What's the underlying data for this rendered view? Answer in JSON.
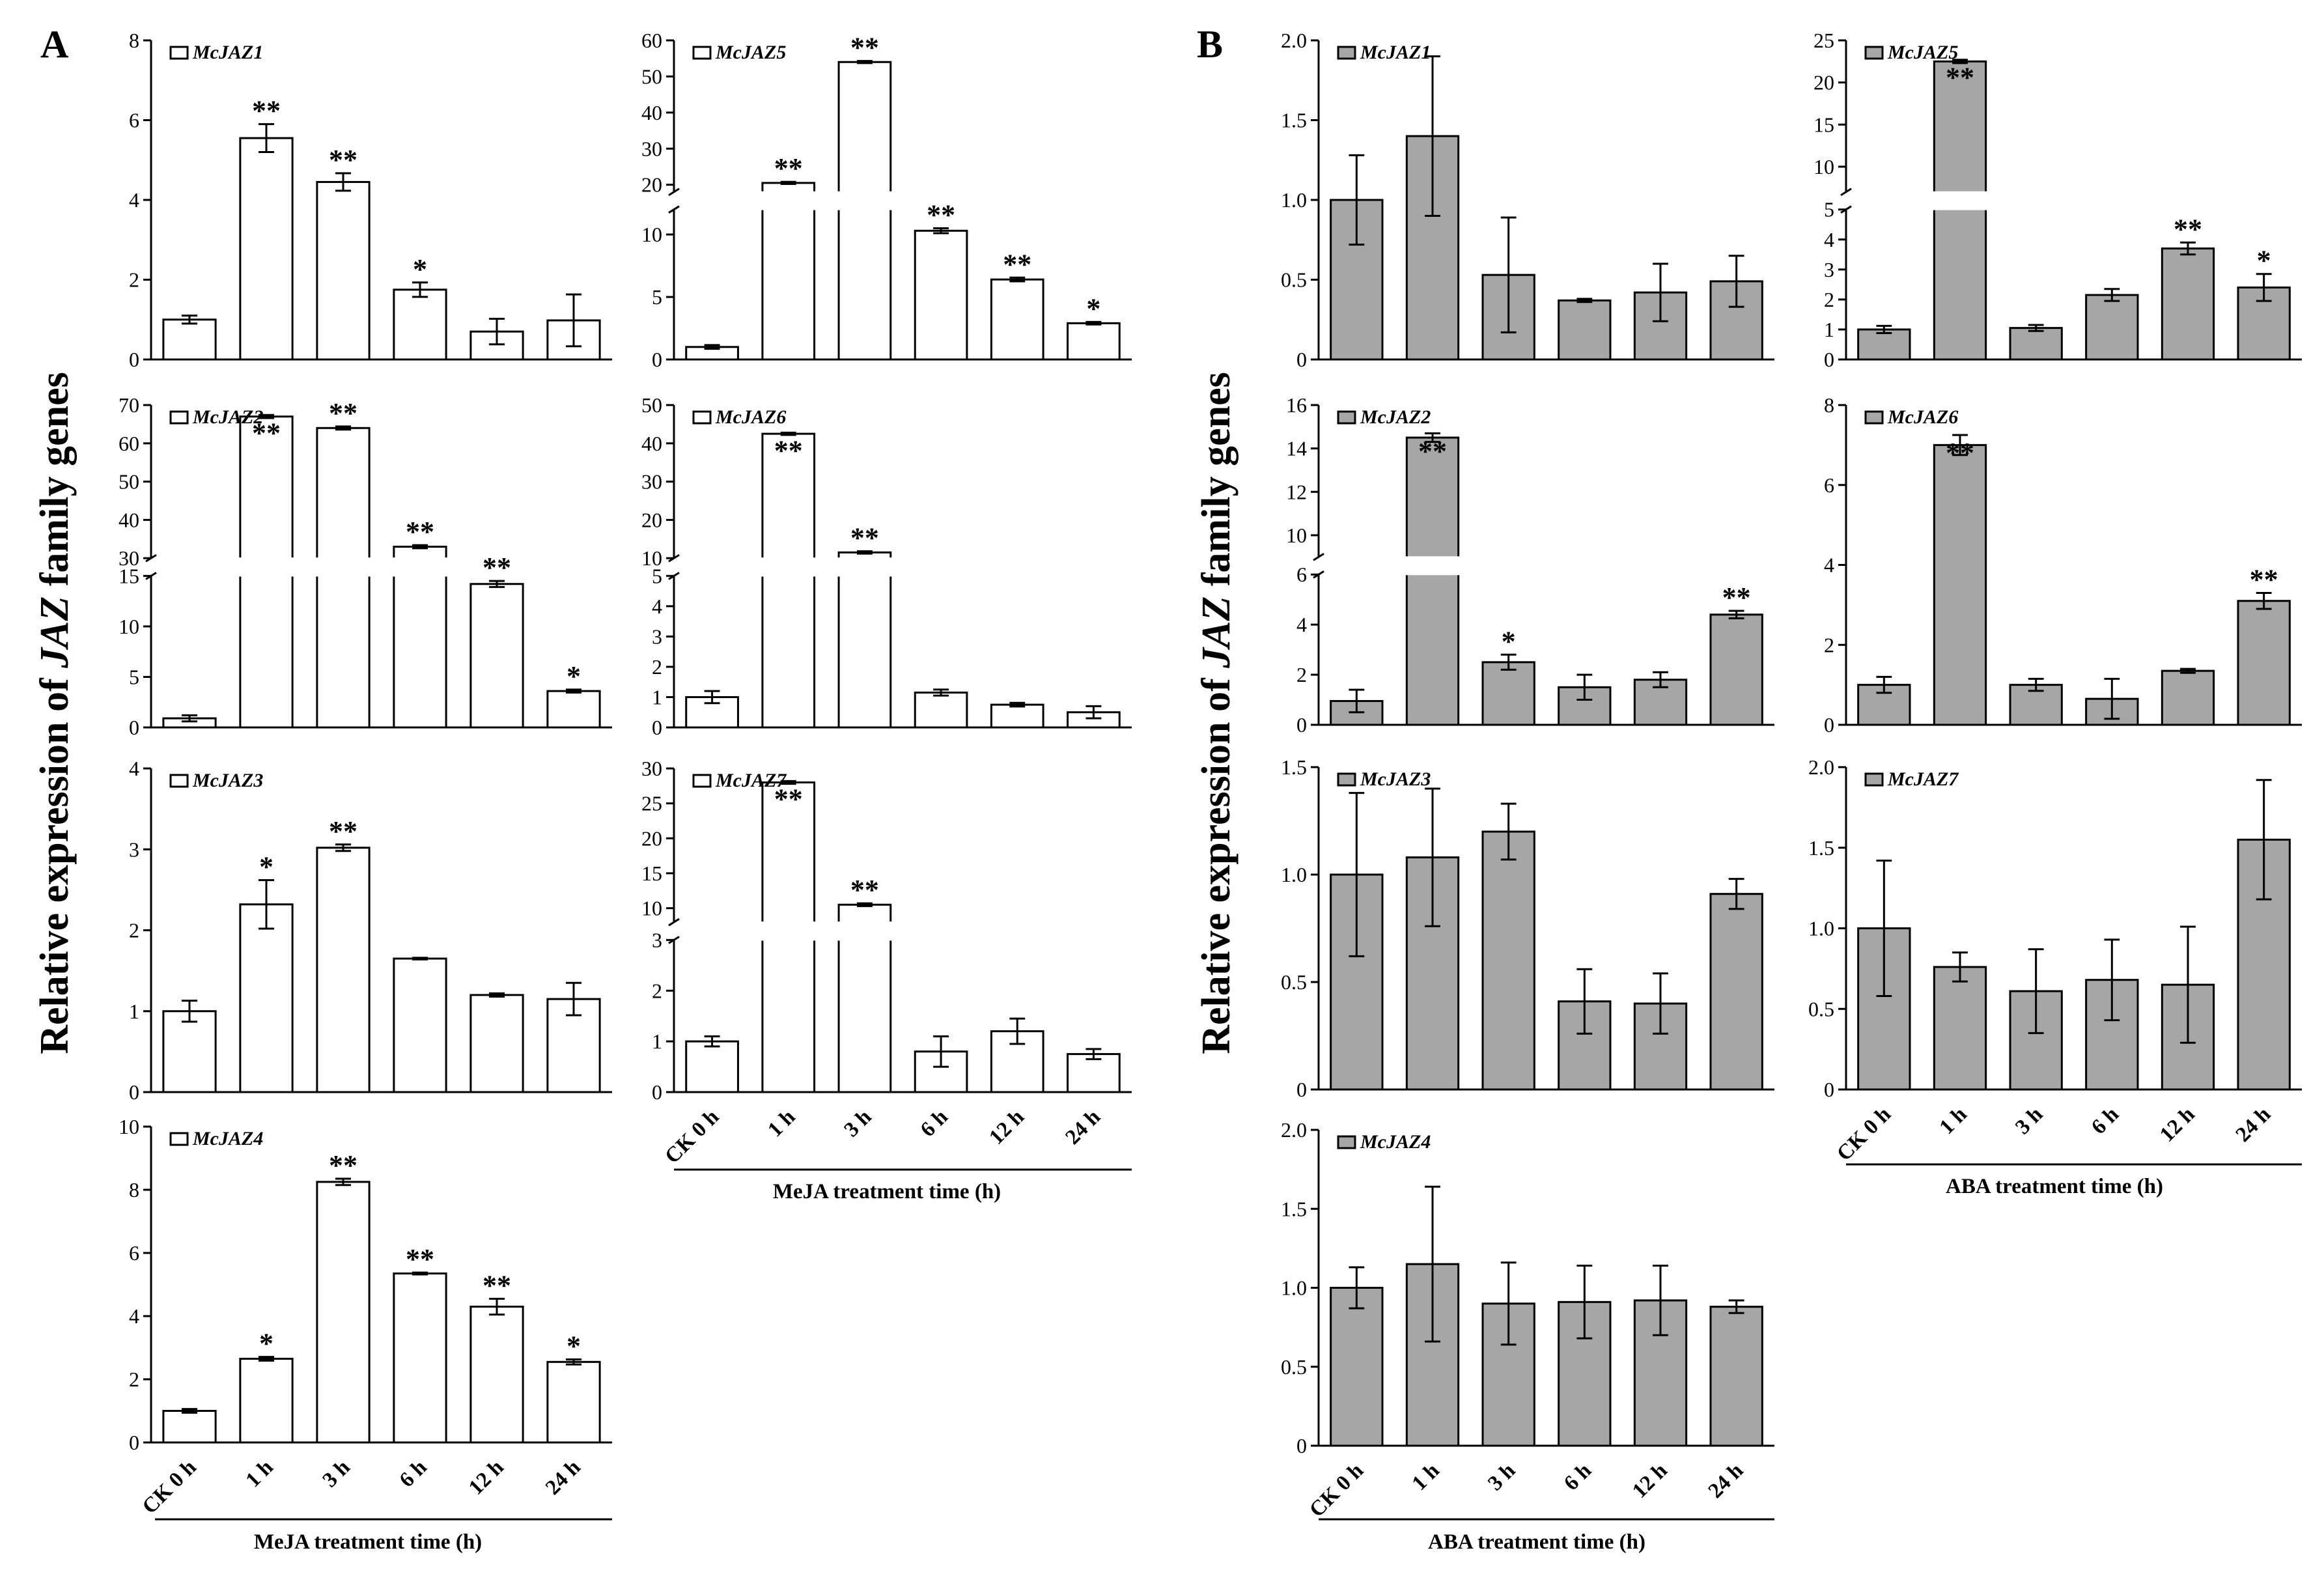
{
  "panels": {
    "A": "A",
    "B": "B"
  },
  "ylabel": {
    "prefix": "Relative expression of ",
    "italic": "JAZ",
    "suffix": " family genes"
  },
  "xlabels": {
    "A": "MeJA treatment time (h)",
    "B": "ABA treatment time (h)"
  },
  "categories": [
    "CK  0 h",
    "1 h",
    "3 h",
    "6 h",
    "12 h",
    "24 h"
  ],
  "colors": {
    "A_bar": "#ffffff",
    "B_bar": "#a6a6a6",
    "ink": "#000000"
  },
  "chart_data": [
    {
      "type": "bar",
      "panel": "A",
      "legend": "McJAZ1",
      "values": [
        1.0,
        5.55,
        4.45,
        1.75,
        0.7,
        0.98
      ],
      "errors": [
        0.1,
        0.35,
        0.22,
        0.18,
        0.32,
        0.65
      ],
      "sig": [
        "",
        "**",
        "**",
        "*",
        "",
        ""
      ],
      "ylim": [
        0,
        8
      ],
      "ticks": [
        0,
        2,
        4,
        6,
        8
      ]
    },
    {
      "type": "bar",
      "panel": "A",
      "legend": "McJAZ5",
      "values": [
        1.0,
        20.5,
        54,
        10.3,
        6.4,
        2.9
      ],
      "errors": [
        0.15,
        0.3,
        0.3,
        0.2,
        0.15,
        0.1
      ],
      "sig": [
        "",
        "**",
        "**",
        "**",
        "**",
        "*"
      ],
      "break": {
        "low": [
          0,
          12
        ],
        "high": [
          18,
          60
        ]
      },
      "ticks_low": [
        0,
        5,
        10
      ],
      "ticks_high": [
        20,
        30,
        40,
        50,
        60
      ]
    },
    {
      "type": "bar",
      "panel": "A",
      "legend": "McJAZ2",
      "values": [
        0.9,
        67,
        64,
        33,
        14.2,
        3.6
      ],
      "errors": [
        0.3,
        0.4,
        0.4,
        0.4,
        0.3,
        0.15
      ],
      "sig": [
        "",
        "**",
        "**",
        "**",
        "**",
        "*"
      ],
      "sig_inside": [
        false,
        true,
        false,
        false,
        false,
        false
      ],
      "break": {
        "low": [
          0,
          15
        ],
        "high": [
          30,
          70
        ]
      },
      "ticks_low": [
        0,
        5,
        10,
        15
      ],
      "ticks_high": [
        30,
        40,
        50,
        60,
        70
      ]
    },
    {
      "type": "bar",
      "panel": "A",
      "legend": "McJAZ6",
      "values": [
        1.0,
        42.5,
        11.5,
        1.15,
        0.75,
        0.5
      ],
      "errors": [
        0.2,
        0.3,
        0.3,
        0.1,
        0.06,
        0.2
      ],
      "sig": [
        "",
        "**",
        "**",
        "",
        "",
        ""
      ],
      "sig_inside": [
        false,
        true,
        false,
        false,
        false,
        false
      ],
      "break": {
        "low": [
          0,
          5
        ],
        "high": [
          10,
          50
        ]
      },
      "ticks_low": [
        0,
        1,
        2,
        3,
        4,
        5
      ],
      "ticks_high": [
        10,
        20,
        30,
        40,
        50
      ]
    },
    {
      "type": "bar",
      "panel": "A",
      "legend": "McJAZ3",
      "values": [
        1.0,
        2.32,
        3.02,
        1.65,
        1.2,
        1.15
      ],
      "errors": [
        0.13,
        0.3,
        0.04,
        0.01,
        0.02,
        0.2
      ],
      "sig": [
        "",
        "*",
        "**",
        "",
        "",
        ""
      ],
      "ylim": [
        0,
        4
      ],
      "ticks": [
        0,
        1,
        2,
        3,
        4
      ]
    },
    {
      "type": "bar",
      "panel": "A",
      "legend": "McJAZ7",
      "values": [
        1.0,
        28,
        10.5,
        0.8,
        1.2,
        0.75
      ],
      "errors": [
        0.1,
        0.2,
        0.2,
        0.3,
        0.25,
        0.1
      ],
      "sig": [
        "",
        "**",
        "**",
        "",
        "",
        ""
      ],
      "sig_inside": [
        false,
        true,
        false,
        false,
        false,
        false
      ],
      "break": {
        "low": [
          0,
          3
        ],
        "high": [
          8,
          30
        ]
      },
      "ticks_low": [
        0,
        1,
        2,
        3
      ],
      "ticks_high": [
        10,
        15,
        20,
        25,
        30
      ]
    },
    {
      "type": "bar",
      "panel": "A",
      "legend": "McJAZ4",
      "values": [
        1.0,
        2.65,
        8.25,
        5.35,
        4.3,
        2.55
      ],
      "errors": [
        0.06,
        0.06,
        0.1,
        0.03,
        0.25,
        0.08
      ],
      "sig": [
        "",
        "*",
        "**",
        "**",
        "**",
        "*"
      ],
      "ylim": [
        0,
        10
      ],
      "ticks": [
        0,
        2,
        4,
        6,
        8,
        10
      ]
    },
    {
      "type": "bar",
      "panel": "B",
      "legend": "McJAZ1",
      "values": [
        1.0,
        1.4,
        0.53,
        0.37,
        0.42,
        0.49
      ],
      "errors": [
        0.28,
        0.5,
        0.36,
        0.01,
        0.18,
        0.16
      ],
      "sig": [
        "",
        "",
        "",
        "",
        "",
        ""
      ],
      "ylim": [
        0,
        2.0
      ],
      "ticks": [
        0,
        0.5,
        1.0,
        1.5,
        2.0
      ],
      "tick_labels": [
        "0",
        "0.5",
        "1.0",
        "1.5",
        "2.0"
      ]
    },
    {
      "type": "bar",
      "panel": "B",
      "legend": "McJAZ5",
      "values": [
        1.0,
        22.5,
        1.05,
        2.15,
        3.7,
        2.4
      ],
      "errors": [
        0.12,
        0.2,
        0.1,
        0.2,
        0.2,
        0.45
      ],
      "sig": [
        "",
        "**",
        "",
        "",
        "**",
        "*"
      ],
      "sig_inside": [
        false,
        true,
        false,
        false,
        false,
        false
      ],
      "break": {
        "low": [
          0,
          5
        ],
        "high": [
          7,
          25
        ]
      },
      "ticks_low": [
        0,
        1,
        2,
        3,
        4,
        5
      ],
      "ticks_high": [
        10,
        15,
        20,
        25
      ]
    },
    {
      "type": "bar",
      "panel": "B",
      "legend": "McJAZ2",
      "values": [
        0.95,
        14.5,
        2.5,
        1.5,
        1.8,
        4.4
      ],
      "errors": [
        0.45,
        0.2,
        0.3,
        0.5,
        0.3,
        0.15
      ],
      "sig": [
        "",
        "**",
        "*",
        "",
        "",
        "**"
      ],
      "sig_inside": [
        false,
        true,
        false,
        false,
        false,
        false
      ],
      "break": {
        "low": [
          0,
          6
        ],
        "high": [
          9,
          16
        ]
      },
      "ticks_low": [
        0,
        2,
        4,
        6
      ],
      "ticks_high": [
        10,
        12,
        14,
        16
      ]
    },
    {
      "type": "bar",
      "panel": "B",
      "legend": "McJAZ6",
      "values": [
        1.0,
        7.0,
        1.0,
        0.65,
        1.35,
        3.1
      ],
      "errors": [
        0.2,
        0.25,
        0.15,
        0.5,
        0.05,
        0.2
      ],
      "sig": [
        "",
        "**",
        "",
        "",
        "",
        "**"
      ],
      "sig_inside": [
        false,
        true,
        false,
        false,
        false,
        false
      ],
      "ylim": [
        0,
        8
      ],
      "ticks": [
        0,
        2,
        4,
        6,
        8
      ]
    },
    {
      "type": "bar",
      "panel": "B",
      "legend": "McJAZ3",
      "values": [
        1.0,
        1.08,
        1.2,
        0.41,
        0.4,
        0.91
      ],
      "errors": [
        0.38,
        0.32,
        0.13,
        0.15,
        0.14,
        0.07
      ],
      "sig": [
        "",
        "",
        "",
        "",
        "",
        ""
      ],
      "ylim": [
        0,
        1.5
      ],
      "ticks": [
        0,
        0.5,
        1.0,
        1.5
      ],
      "tick_labels": [
        "0",
        "0.5",
        "1.0",
        "1.5"
      ]
    },
    {
      "type": "bar",
      "panel": "B",
      "legend": "McJAZ7",
      "values": [
        1.0,
        0.76,
        0.61,
        0.68,
        0.65,
        1.55
      ],
      "errors": [
        0.42,
        0.09,
        0.26,
        0.25,
        0.36,
        0.37
      ],
      "sig": [
        "",
        "",
        "",
        "",
        "",
        ""
      ],
      "ylim": [
        0,
        2.0
      ],
      "ticks": [
        0,
        0.5,
        1.0,
        1.5,
        2.0
      ],
      "tick_labels": [
        "0",
        "0.5",
        "1.0",
        "1.5",
        "2.0"
      ]
    },
    {
      "type": "bar",
      "panel": "B",
      "legend": "McJAZ4",
      "values": [
        1.0,
        1.15,
        0.9,
        0.91,
        0.92,
        0.88
      ],
      "errors": [
        0.13,
        0.49,
        0.26,
        0.23,
        0.22,
        0.04
      ],
      "sig": [
        "",
        "",
        "",
        "",
        "",
        ""
      ],
      "ylim": [
        0,
        2.0
      ],
      "ticks": [
        0,
        0.5,
        1.0,
        1.5,
        2.0
      ],
      "tick_labels": [
        "0",
        "0.5",
        "1.0",
        "1.5",
        "2.0"
      ]
    }
  ]
}
